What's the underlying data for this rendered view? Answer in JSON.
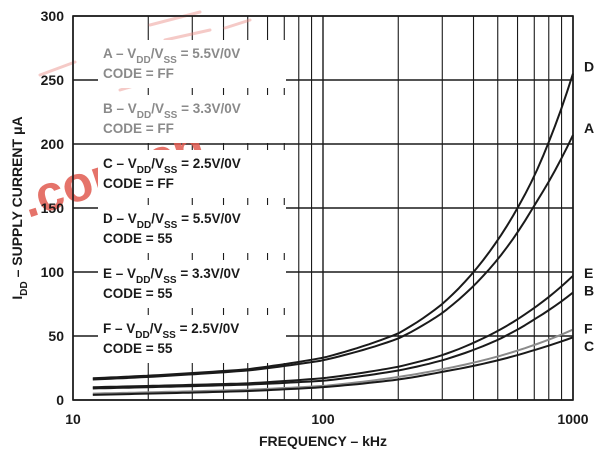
{
  "chart_data": {
    "type": "line",
    "xscale": "log",
    "xlim": [
      10,
      1000
    ],
    "ylim": [
      0,
      300
    ],
    "xlabel": "FREQUENCY – kHz",
    "ylabel_parts": {
      "lead": "I",
      "sub": "DD",
      "rest": " – SUPPLY CURRENT μA"
    },
    "x_ticks": [
      10,
      100,
      1000
    ],
    "x_tick_labels": [
      "10",
      "100",
      "1000"
    ],
    "y_ticks": [
      0,
      50,
      100,
      150,
      200,
      250,
      300
    ],
    "y_tick_labels": [
      "0",
      "50",
      "100",
      "150",
      "200",
      "250",
      "300"
    ],
    "grid": true,
    "legend": [
      {
        "label": "A",
        "line1": "A – V",
        "sub1": "DD",
        "mid": "/V",
        "sub2": "SS",
        "tail": " = 5.5V/0V",
        "code": "CODE = FF",
        "color": "#8a8a8a"
      },
      {
        "label": "B",
        "line1": "B – V",
        "sub1": "DD",
        "mid": "/V",
        "sub2": "SS",
        "tail": " = 3.3V/0V",
        "code": "CODE = FF",
        "color": "#8a8a8a"
      },
      {
        "label": "C",
        "line1": "C – V",
        "sub1": "DD",
        "mid": "/V",
        "sub2": "SS",
        "tail": " = 2.5V/0V",
        "code": "CODE = FF",
        "color": "#1a1a1a"
      },
      {
        "label": "D",
        "line1": "D – V",
        "sub1": "DD",
        "mid": "/V",
        "sub2": "SS",
        "tail": " = 5.5V/0V",
        "code": "CODE = 55",
        "color": "#1a1a1a"
      },
      {
        "label": "E",
        "line1": "E – V",
        "sub1": "DD",
        "mid": "/V",
        "sub2": "SS",
        "tail": " = 3.3V/0V",
        "code": "CODE = 55",
        "color": "#1a1a1a"
      },
      {
        "label": "F",
        "line1": "F – V",
        "sub1": "DD",
        "mid": "/V",
        "sub2": "SS",
        "tail": " = 2.5V/0V",
        "code": "CODE = 55",
        "color": "#1a1a1a"
      }
    ],
    "series": [
      {
        "name": "D",
        "color": "#1a1a1a",
        "x": [
          12,
          20,
          50,
          100,
          200,
          300,
          500,
          700,
          1000
        ],
        "y": [
          17,
          19,
          24,
          33,
          52,
          75,
          125,
          175,
          255
        ]
      },
      {
        "name": "A",
        "color": "#1a1a1a",
        "x": [
          12,
          20,
          50,
          100,
          200,
          300,
          500,
          700,
          1000
        ],
        "y": [
          16,
          18,
          23,
          31,
          48,
          68,
          110,
          152,
          207
        ]
      },
      {
        "name": "E",
        "color": "#1a1a1a",
        "x": [
          12,
          20,
          50,
          100,
          200,
          300,
          500,
          700,
          1000
        ],
        "y": [
          10,
          11,
          13,
          17,
          26,
          35,
          54,
          72,
          97
        ]
      },
      {
        "name": "B",
        "color": "#1a1a1a",
        "x": [
          12,
          20,
          50,
          100,
          200,
          300,
          500,
          700,
          1000
        ],
        "y": [
          9,
          10,
          12,
          15,
          23,
          31,
          47,
          63,
          84
        ]
      },
      {
        "name": "F",
        "color": "#8a8a8a",
        "x": [
          12,
          20,
          50,
          100,
          200,
          300,
          500,
          700,
          1000
        ],
        "y": [
          5,
          6,
          8,
          11,
          18,
          24,
          34,
          43,
          55
        ]
      },
      {
        "name": "C",
        "color": "#1a1a1a",
        "x": [
          12,
          20,
          50,
          100,
          200,
          300,
          500,
          700,
          1000
        ],
        "y": [
          4,
          5,
          7,
          10,
          16,
          22,
          31,
          39,
          49
        ]
      }
    ],
    "watermark": {
      "text": ".com.cn",
      "color": "#e05a50"
    }
  }
}
